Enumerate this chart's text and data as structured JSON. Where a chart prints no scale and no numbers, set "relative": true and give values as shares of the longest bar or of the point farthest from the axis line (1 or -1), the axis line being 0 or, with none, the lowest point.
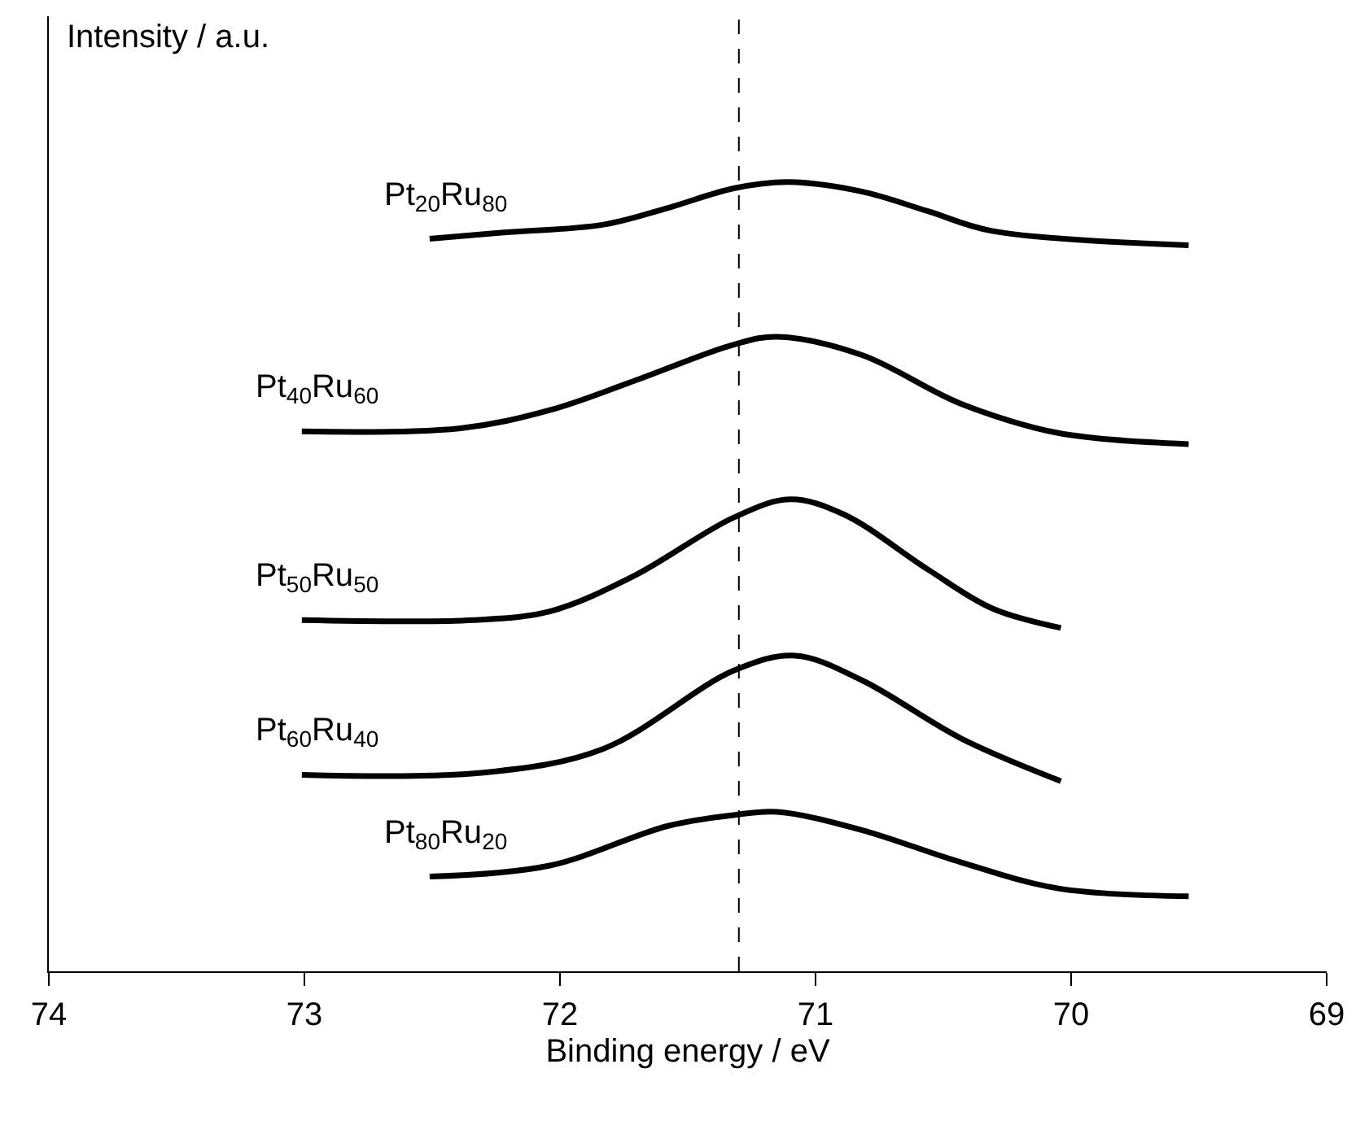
{
  "chart_data": {
    "type": "line",
    "relative": true,
    "xlabel": "Binding energy / eV",
    "ylabel": "Intensity / a.u.",
    "xlim": [
      74,
      69
    ],
    "xticks": [
      74,
      73,
      72,
      71,
      70,
      69
    ],
    "legend": false,
    "marker": "none",
    "line_style": "solid",
    "tick_labels": "x",
    "ref_lines": [
      {
        "axis": "x",
        "value": 71.3,
        "color": "#000000",
        "line_style": "dashed"
      }
    ],
    "series": [
      {
        "name": "Pt$_{20}$Ru$_{80}$",
        "color": "#000000",
        "x": [
          72.51,
          72.22,
          71.83,
          71.58,
          71.32,
          71.11,
          70.82,
          70.56,
          70.31,
          69.54
        ],
        "values": [
          0.928,
          0.936,
          0.946,
          0.967,
          0.992,
          1.0,
          0.988,
          0.963,
          0.938,
          0.92
        ]
      },
      {
        "name": "Pt$_{40}$Ru$_{60}$",
        "color": "#000000",
        "x": [
          73.01,
          72.39,
          72.04,
          71.71,
          71.32,
          71.15,
          70.82,
          70.43,
          70.05,
          69.54
        ],
        "values": [
          0.684,
          0.688,
          0.711,
          0.748,
          0.794,
          0.804,
          0.781,
          0.719,
          0.682,
          0.668
        ]
      },
      {
        "name": "Pt$_{50}$Ru$_{50}$",
        "color": "#000000",
        "x": [
          73.01,
          72.34,
          72.04,
          71.71,
          71.32,
          71.1,
          70.89,
          70.56,
          70.31,
          70.04
        ],
        "values": [
          0.445,
          0.445,
          0.456,
          0.501,
          0.575,
          0.598,
          0.579,
          0.509,
          0.46,
          0.435
        ]
      },
      {
        "name": "Pt$_{60}$Ru$_{40}$",
        "color": "#000000",
        "x": [
          73.01,
          72.29,
          71.83,
          71.32,
          71.08,
          70.82,
          70.43,
          70.04
        ],
        "values": [
          0.249,
          0.252,
          0.282,
          0.381,
          0.4,
          0.369,
          0.295,
          0.241
        ]
      },
      {
        "name": "Pt$_{80}$Ru$_{20}$",
        "color": "#000000",
        "x": [
          72.51,
          72.04,
          71.58,
          71.32,
          71.15,
          70.82,
          70.43,
          70.05,
          69.54
        ],
        "values": [
          0.12,
          0.134,
          0.184,
          0.198,
          0.202,
          0.179,
          0.138,
          0.105,
          0.095
        ]
      }
    ]
  }
}
